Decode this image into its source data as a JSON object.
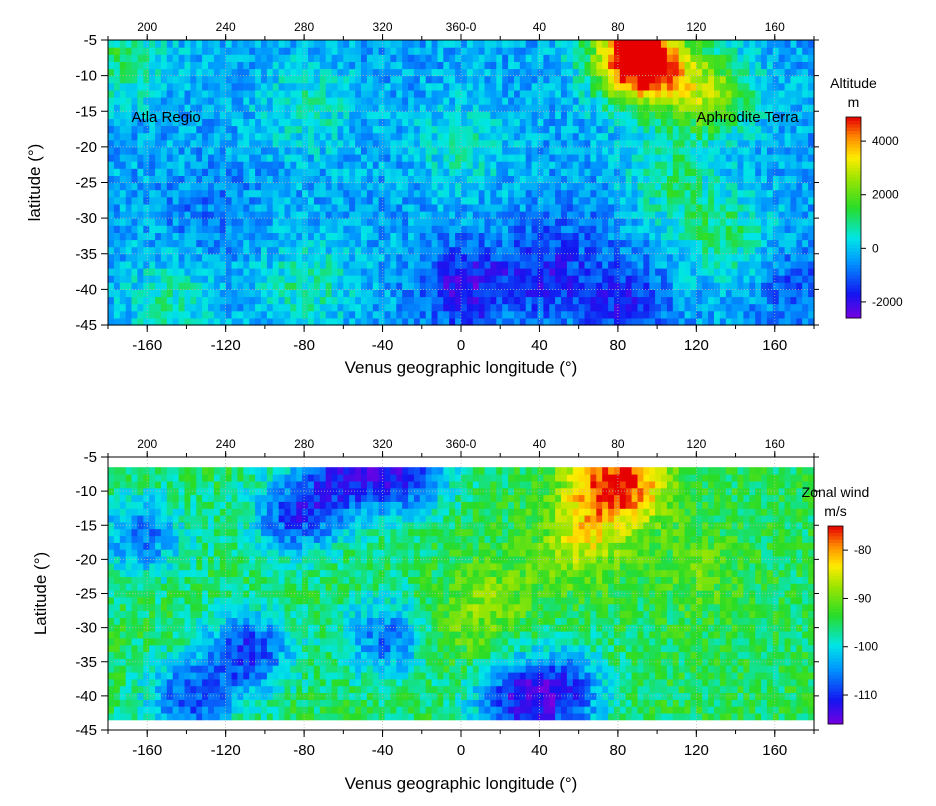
{
  "chart_data": [
    {
      "type": "heatmap",
      "title": "",
      "xlabel": "Venus geographic longitude (°)",
      "ylabel": "latitude (°)",
      "xlim": [
        -180,
        180
      ],
      "ylim": [
        -45,
        -5
      ],
      "x_ticks": [
        -160,
        -120,
        -80,
        -40,
        0,
        40,
        80,
        120,
        160
      ],
      "x_tick_labels": [
        "-160",
        "-120",
        "-80",
        "-40",
        "0",
        "40",
        "80",
        "120",
        "160"
      ],
      "y_ticks": [
        -5,
        -10,
        -15,
        -20,
        -25,
        -30,
        -35,
        -40,
        -45
      ],
      "y_tick_labels": [
        "-5",
        "-10",
        "-15",
        "-20",
        "-25",
        "-30",
        "-35",
        "-40",
        "-45"
      ],
      "top_axis_ticks": [
        -160,
        -120,
        -80,
        -40,
        0,
        40,
        80,
        120,
        160
      ],
      "top_axis_labels": [
        "200",
        "240",
        "280",
        "320",
        "360-0",
        "40",
        "80",
        "120",
        "160"
      ],
      "data_lat_range": [
        -45,
        -5
      ],
      "grid": true,
      "colorbar": {
        "title": "Altitude",
        "unit": "m",
        "range": [
          -2600,
          4900
        ],
        "ticks": [
          -2000,
          0,
          2000,
          4000
        ],
        "tick_labels": [
          "-2000",
          "0",
          "2000",
          "4000"
        ]
      },
      "annotations": [
        {
          "text": "Atla Regio",
          "lon": -168,
          "lat": -16.5
        },
        {
          "text": "Aphrodite Terra",
          "lon": 120,
          "lat": -16.5
        }
      ],
      "features": [
        {
          "lon": 93,
          "lat": -9,
          "value": 4200
        },
        {
          "lon": 85,
          "lat": -7,
          "value": 3500
        },
        {
          "lon": 125,
          "lat": -13,
          "value": 3000
        },
        {
          "lon": 105,
          "lat": -25,
          "value": 1200
        },
        {
          "lon": 132,
          "lat": -33,
          "value": 1400
        },
        {
          "lon": -80,
          "lat": -15,
          "value": 900
        },
        {
          "lon": -80,
          "lat": -40,
          "value": 1000
        },
        {
          "lon": -175,
          "lat": -8,
          "value": 1500
        },
        {
          "lon": -150,
          "lat": -42,
          "value": 900
        },
        {
          "lon": 0,
          "lat": -20,
          "value": 800
        },
        {
          "lon": 0,
          "lat": -40,
          "value": -2200
        },
        {
          "lon": 40,
          "lat": -38,
          "value": -1800
        },
        {
          "lon": 80,
          "lat": -42,
          "value": -1800
        },
        {
          "lon": -130,
          "lat": -30,
          "value": -900
        },
        {
          "lon": 60,
          "lat": -30,
          "value": -700
        },
        {
          "lon": 170,
          "lat": -40,
          "value": -1200
        }
      ]
    },
    {
      "type": "heatmap",
      "title": "",
      "xlabel": "Venus geographic longitude (°)",
      "ylabel": "Latitude (°)",
      "xlim": [
        -180,
        180
      ],
      "ylim": [
        -45,
        -5
      ],
      "x_ticks": [
        -160,
        -120,
        -80,
        -40,
        0,
        40,
        80,
        120,
        160
      ],
      "x_tick_labels": [
        "-160",
        "-120",
        "-80",
        "-40",
        "0",
        "40",
        "80",
        "120",
        "160"
      ],
      "y_ticks": [
        -5,
        -10,
        -15,
        -20,
        -25,
        -30,
        -35,
        -40,
        -45
      ],
      "y_tick_labels": [
        "-5",
        "-10",
        "-15",
        "-20",
        "-25",
        "-30",
        "-35",
        "-40",
        "-45"
      ],
      "top_axis_ticks": [
        -160,
        -120,
        -80,
        -40,
        0,
        40,
        80,
        120,
        160
      ],
      "top_axis_labels": [
        "200",
        "240",
        "280",
        "320",
        "360-0",
        "40",
        "80",
        "120",
        "160"
      ],
      "data_lat_range": [
        -43.5,
        -7
      ],
      "grid": true,
      "colorbar": {
        "title": "Zonal wind",
        "unit": "m/s",
        "range": [
          -116,
          -75
        ],
        "ticks": [
          -80,
          -90,
          -100,
          -110
        ],
        "tick_labels": [
          "-80",
          "-90",
          "-100",
          "-110"
        ]
      },
      "annotations": [],
      "features": [
        {
          "lon": 85,
          "lat": -9,
          "value": -80
        },
        {
          "lon": 70,
          "lat": -10,
          "value": -82
        },
        {
          "lon": 60,
          "lat": -18,
          "value": -85
        },
        {
          "lon": 120,
          "lat": -22,
          "value": -90
        },
        {
          "lon": 20,
          "lat": -25,
          "value": -90
        },
        {
          "lon": -110,
          "lat": -34,
          "value": -112
        },
        {
          "lon": -85,
          "lat": -14,
          "value": -111
        },
        {
          "lon": -30,
          "lat": -8,
          "value": -112
        },
        {
          "lon": -60,
          "lat": -8,
          "value": -111
        },
        {
          "lon": 50,
          "lat": -40,
          "value": -112
        },
        {
          "lon": 25,
          "lat": -41,
          "value": -110
        },
        {
          "lon": -140,
          "lat": -41,
          "value": -110
        },
        {
          "lon": -165,
          "lat": -17,
          "value": -108
        },
        {
          "lon": -40,
          "lat": -32,
          "value": -108
        },
        {
          "lon": 0,
          "lat": -30,
          "value": -90
        },
        {
          "lon": -120,
          "lat": -15,
          "value": -96
        }
      ]
    }
  ]
}
